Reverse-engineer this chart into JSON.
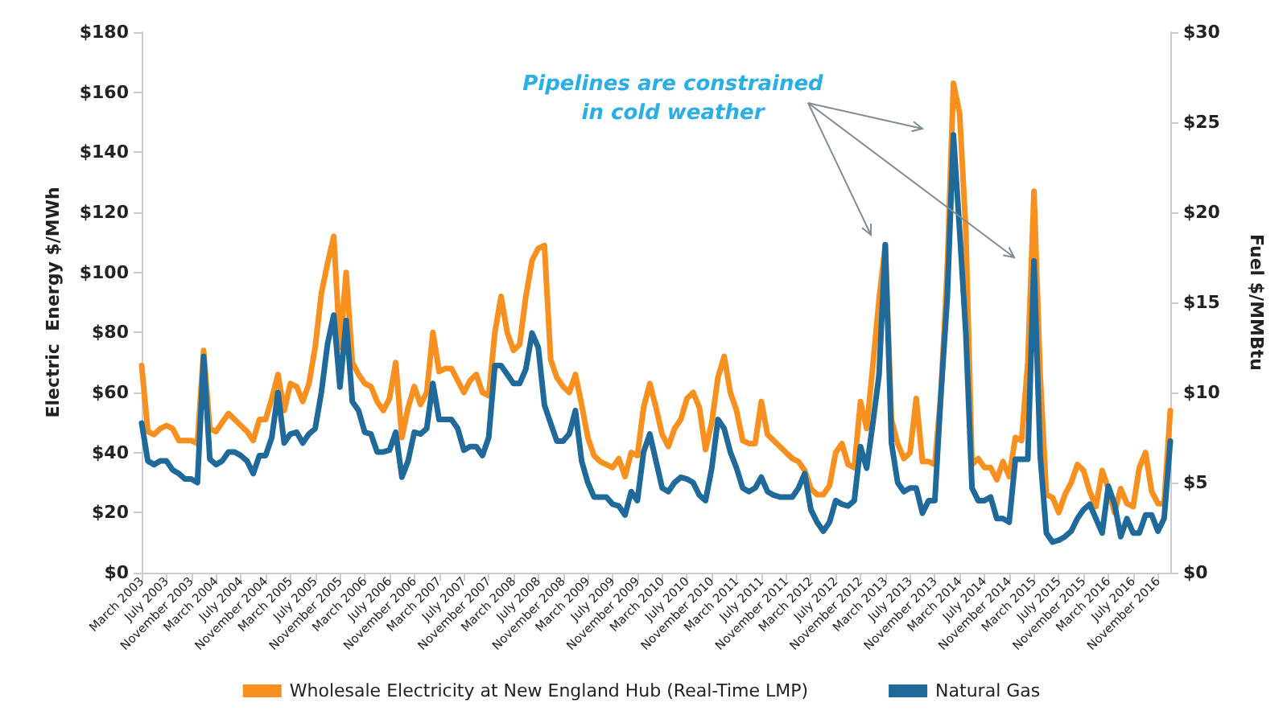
{
  "chart_data": {
    "type": "line",
    "ylabel": "Electric  Energy $/MWh",
    "y2label": "Fuel $/MMBtu",
    "annotations": [
      "Pipelines are constrained in cold weather"
    ],
    "categories": [
      "March 2003",
      null,
      null,
      null,
      "July 2003",
      null,
      null,
      null,
      "November 2003",
      null,
      null,
      null,
      "March 2004",
      null,
      null,
      null,
      "July 2004",
      null,
      null,
      null,
      "November 2004",
      null,
      null,
      null,
      "March 2005",
      null,
      null,
      null,
      "July 2005",
      null,
      null,
      null,
      "November 2005",
      null,
      null,
      null,
      "March 2006",
      null,
      null,
      null,
      "July 2006",
      null,
      null,
      null,
      "November 2006",
      null,
      null,
      null,
      "March 2007",
      null,
      null,
      null,
      "July 2007",
      null,
      null,
      null,
      "November 2007",
      null,
      null,
      null,
      "March 2008",
      null,
      null,
      null,
      "July 2008",
      null,
      null,
      null,
      "November 2008",
      null,
      null,
      null,
      "March 2009",
      null,
      null,
      null,
      "July 2009",
      null,
      null,
      null,
      "November 2009",
      null,
      null,
      null,
      "March 2010",
      null,
      null,
      null,
      "July 2010",
      null,
      null,
      null,
      "November 2010",
      null,
      null,
      null,
      "March 2011",
      null,
      null,
      null,
      "July 2011",
      null,
      null,
      null,
      "November 2011",
      null,
      null,
      null,
      "March 2012",
      null,
      null,
      null,
      "July 2012",
      null,
      null,
      null,
      "November 2012",
      null,
      null,
      null,
      "March 2013",
      null,
      null,
      null,
      "July 2013",
      null,
      null,
      null,
      "November 2013",
      null,
      null,
      null,
      "March 2014",
      null,
      null,
      null,
      "July 2014",
      null,
      null,
      null,
      "November 2014",
      null,
      null,
      null,
      "March 2015",
      null,
      null,
      null,
      "July 2015",
      null,
      null,
      null,
      "November 2015",
      null,
      null,
      null,
      "March 2016",
      null,
      null,
      null,
      "July 2016",
      null,
      null,
      null,
      "November 2016",
      null,
      null
    ],
    "series": [
      {
        "name": "Wholesale Electricity at New England Hub (Real-Time LMP)",
        "color": "#f7901e",
        "values": [
          69,
          47,
          46,
          48,
          49,
          48,
          44,
          44,
          44,
          43,
          74,
          48,
          47,
          50,
          53,
          51,
          49,
          47,
          44,
          51,
          51,
          58,
          66,
          54,
          63,
          62,
          57,
          63,
          75,
          93,
          103,
          112,
          75,
          100,
          70,
          66,
          63,
          62,
          57,
          54,
          58,
          70,
          45,
          55,
          62,
          56,
          60,
          80,
          67,
          68,
          68,
          64,
          60,
          64,
          66,
          60,
          59,
          80,
          92,
          80,
          74,
          76,
          92,
          104,
          108,
          109,
          71,
          65,
          62,
          60,
          66,
          56,
          45,
          39,
          37,
          36,
          35,
          38,
          32,
          40,
          39,
          55,
          63,
          55,
          46,
          42,
          48,
          51,
          58,
          60,
          55,
          41,
          50,
          65,
          72,
          60,
          54,
          44,
          43,
          43,
          57,
          46,
          44,
          42,
          40,
          38,
          37,
          34,
          28,
          26,
          26,
          29,
          40,
          43,
          36,
          35,
          57,
          48,
          69,
          91,
          109,
          51,
          43,
          38,
          40,
          58,
          37,
          37,
          36,
          60,
          101,
          163,
          153,
          114,
          36,
          38,
          35,
          35,
          31,
          37,
          32,
          45,
          44,
          70,
          127,
          66,
          26,
          25,
          20,
          26,
          30,
          36,
          34,
          27,
          22,
          34,
          28,
          20,
          28,
          23,
          22,
          35,
          40,
          27,
          23,
          23,
          54
        ]
      },
      {
        "name": "Natural Gas",
        "color": "#1f6a9a",
        "axis": "y2",
        "values": [
          8.3,
          6.2,
          6,
          6.2,
          6.2,
          5.7,
          5.5,
          5.2,
          5.2,
          5,
          12,
          6.3,
          6,
          6.2,
          6.7,
          6.7,
          6.5,
          6.2,
          5.5,
          6.5,
          6.5,
          7.5,
          10,
          7.2,
          7.7,
          7.8,
          7.2,
          7.7,
          8,
          10,
          12.7,
          14.3,
          10.3,
          14,
          9.5,
          9,
          7.8,
          7.7,
          6.7,
          6.7,
          6.8,
          7.8,
          5.3,
          6.2,
          7.8,
          7.7,
          8,
          10.5,
          8.5,
          8.5,
          8.5,
          8,
          6.8,
          7,
          7,
          6.5,
          7.5,
          11.5,
          11.5,
          11,
          10.5,
          10.5,
          11.3,
          13.3,
          12.5,
          9.3,
          8.3,
          7.3,
          7.3,
          7.7,
          9,
          6.2,
          5,
          4.2,
          4.2,
          4.2,
          3.8,
          3.7,
          3.2,
          4.5,
          4,
          6.7,
          7.7,
          6.2,
          4.7,
          4.5,
          5,
          5.3,
          5.2,
          5,
          4.3,
          4,
          5.8,
          8.5,
          8,
          6.7,
          5.8,
          4.7,
          4.5,
          4.7,
          5.3,
          4.5,
          4.3,
          4.2,
          4.2,
          4.2,
          4.7,
          5.5,
          3.5,
          2.8,
          2.3,
          2.8,
          4,
          3.8,
          3.7,
          4,
          7,
          5.8,
          8.3,
          11,
          18.2,
          7.2,
          5,
          4.5,
          4.7,
          4.7,
          3.3,
          4,
          4,
          10,
          15.2,
          24.3,
          19,
          13.3,
          4.7,
          4,
          4,
          4.2,
          3,
          3,
          2.8,
          6.3,
          6.3,
          6.3,
          17.3,
          6.5,
          2.2,
          1.7,
          1.8,
          2,
          2.3,
          3,
          3.5,
          3.8,
          3,
          2.2,
          4.8,
          3.8,
          2,
          3,
          2.2,
          2.2,
          3.2,
          3.2,
          2.3,
          3,
          7.3
        ]
      }
    ],
    "ylim": [
      0,
      180
    ],
    "yticks": [
      {
        "value": 0,
        "label": "$0"
      },
      {
        "value": 20,
        "label": "$20"
      },
      {
        "value": 40,
        "label": "$40"
      },
      {
        "value": 60,
        "label": "$60"
      },
      {
        "value": 80,
        "label": "$80"
      },
      {
        "value": 100,
        "label": "$100"
      },
      {
        "value": 120,
        "label": "$120"
      },
      {
        "value": 140,
        "label": "$140"
      },
      {
        "value": 160,
        "label": "$160"
      },
      {
        "value": 180,
        "label": "$180"
      }
    ],
    "y2lim": [
      0,
      30
    ],
    "y2ticks": [
      {
        "value": 0,
        "label": "$0"
      },
      {
        "value": 5,
        "label": "$5"
      },
      {
        "value": 10,
        "label": "$10"
      },
      {
        "value": 15,
        "label": "$15"
      },
      {
        "value": 20,
        "label": "$20"
      },
      {
        "value": 25,
        "label": "$25"
      },
      {
        "value": 30,
        "label": "$30"
      }
    ],
    "grid": false,
    "legend": "bottom",
    "marker": "none",
    "line_style": "solid"
  }
}
